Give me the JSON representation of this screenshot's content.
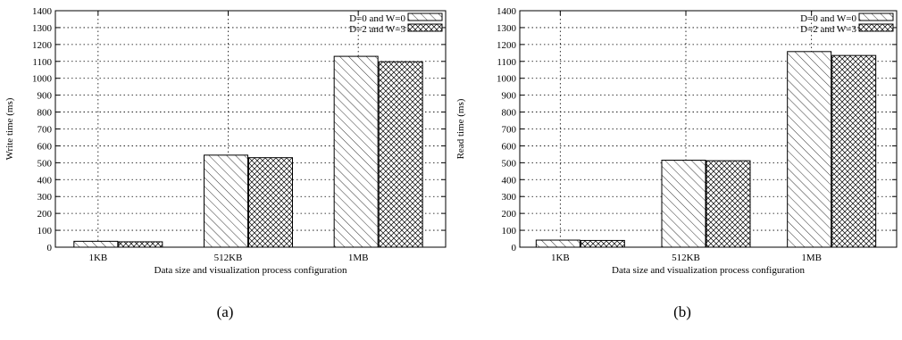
{
  "chart_data": [
    {
      "type": "bar",
      "caption": "(a)",
      "categories": [
        "1KB",
        "512KB",
        "1MB"
      ],
      "series": [
        {
          "name": "D=0 and W=0",
          "values": [
            35,
            545,
            1130
          ]
        },
        {
          "name": "D=2 and W=3",
          "values": [
            32,
            530,
            1098
          ]
        }
      ],
      "xlabel": "Data size and visualization process configuration",
      "ylabel": "Write time (ms)",
      "ylim": [
        0,
        1400
      ],
      "yticks": [
        "0",
        "100",
        "200",
        "300",
        "400",
        "500",
        "600",
        "700",
        "800",
        "900",
        "1000",
        "1100",
        "1200",
        "1300",
        "1400"
      ],
      "grid": true,
      "legend_position": "top-right"
    },
    {
      "type": "bar",
      "caption": "(b)",
      "categories": [
        "1KB",
        "512KB",
        "1MB"
      ],
      "series": [
        {
          "name": "D=0 and W=0",
          "values": [
            42,
            515,
            1158
          ]
        },
        {
          "name": "D=2 and W=3",
          "values": [
            40,
            512,
            1135
          ]
        }
      ],
      "xlabel": "Data size and visualization process configuration",
      "ylabel": "Read time (ms)",
      "ylim": [
        0,
        1400
      ],
      "yticks": [
        "0",
        "100",
        "200",
        "300",
        "400",
        "500",
        "600",
        "700",
        "800",
        "900",
        "1000",
        "1100",
        "1200",
        "1300",
        "1400"
      ],
      "grid": true,
      "legend_position": "top-right"
    }
  ]
}
